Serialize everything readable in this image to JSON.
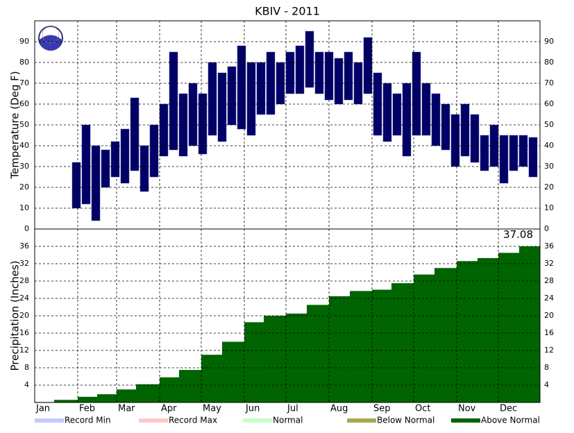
{
  "chart_data": [
    {
      "type": "range",
      "title": "KBIV - 2011",
      "y_label": "Temperature (Deg F)",
      "color": "#000066",
      "x": [
        31,
        38,
        45,
        52,
        59,
        66,
        73,
        80,
        87,
        94,
        101,
        108,
        115,
        122,
        129,
        136,
        143,
        150,
        157,
        164,
        171,
        178,
        185,
        192,
        199,
        206,
        213,
        220,
        227,
        234,
        241,
        248,
        255,
        262,
        269,
        276,
        283,
        290,
        297,
        304,
        311,
        318,
        325,
        332,
        339,
        346,
        353,
        360
      ],
      "low": [
        10,
        12,
        4,
        20,
        25,
        22,
        28,
        18,
        25,
        35,
        38,
        35,
        40,
        36,
        45,
        42,
        50,
        48,
        45,
        55,
        55,
        60,
        65,
        65,
        68,
        65,
        62,
        60,
        62,
        60,
        65,
        45,
        42,
        45,
        35,
        45,
        45,
        40,
        38,
        30,
        35,
        32,
        28,
        30,
        22,
        28,
        30,
        25
      ],
      "high": [
        32,
        50,
        40,
        38,
        42,
        48,
        63,
        40,
        50,
        60,
        85,
        65,
        70,
        65,
        80,
        75,
        78,
        88,
        80,
        80,
        85,
        80,
        85,
        88,
        95,
        85,
        85,
        82,
        85,
        80,
        92,
        75,
        70,
        65,
        70,
        85,
        70,
        65,
        60,
        55,
        60,
        55,
        45,
        50,
        45,
        45,
        45,
        44
      ],
      "xlim": [
        1,
        365
      ],
      "xticks": [
        32,
        60,
        91,
        121,
        152,
        182,
        213,
        244,
        274,
        305,
        335
      ],
      "ylim": [
        0,
        100
      ],
      "yticks": [
        0,
        10,
        20,
        30,
        40,
        50,
        60,
        70,
        80,
        90
      ],
      "grid": true
    },
    {
      "type": "area",
      "y_label": "Precipitation (Inches)",
      "color": "#006400",
      "x": [
        1,
        15,
        32,
        46,
        60,
        74,
        91,
        105,
        121,
        136,
        152,
        166,
        182,
        197,
        213,
        228,
        244,
        258,
        274,
        289,
        305,
        320,
        335,
        350,
        365
      ],
      "values": [
        0.1,
        0.6,
        1.3,
        1.9,
        3.0,
        4.2,
        5.8,
        7.5,
        11.0,
        14.0,
        18.5,
        20.0,
        20.5,
        22.5,
        24.5,
        25.7,
        26.0,
        27.5,
        29.5,
        31.0,
        32.6,
        33.3,
        34.5,
        36.0,
        37.08
      ],
      "xlim": [
        1,
        365
      ],
      "xticks": [
        {
          "value": 1,
          "label": "Jan"
        },
        {
          "value": 32,
          "label": "Feb"
        },
        {
          "value": 60,
          "label": "Mar"
        },
        {
          "value": 91,
          "label": "Apr"
        },
        {
          "value": 121,
          "label": "May"
        },
        {
          "value": 152,
          "label": "Jun"
        },
        {
          "value": 182,
          "label": "Jul"
        },
        {
          "value": 213,
          "label": "Aug"
        },
        {
          "value": 244,
          "label": "Sep"
        },
        {
          "value": 274,
          "label": "Oct"
        },
        {
          "value": 305,
          "label": "Nov"
        },
        {
          "value": 335,
          "label": "Dec"
        }
      ],
      "ylim": [
        0,
        40
      ],
      "yticks": [
        4,
        8,
        12,
        16,
        20,
        24,
        28,
        32,
        36
      ],
      "grid": true,
      "legend": [
        {
          "name": "Record Min",
          "color": "#c8c8ff"
        },
        {
          "name": "Record Max",
          "color": "#ffc8c8"
        },
        {
          "name": "Normal",
          "color": "#c8ffc8"
        },
        {
          "name": "Below Normal",
          "color": "#a8a850"
        },
        {
          "name": "Above Normal",
          "color": "#006400"
        }
      ]
    }
  ]
}
